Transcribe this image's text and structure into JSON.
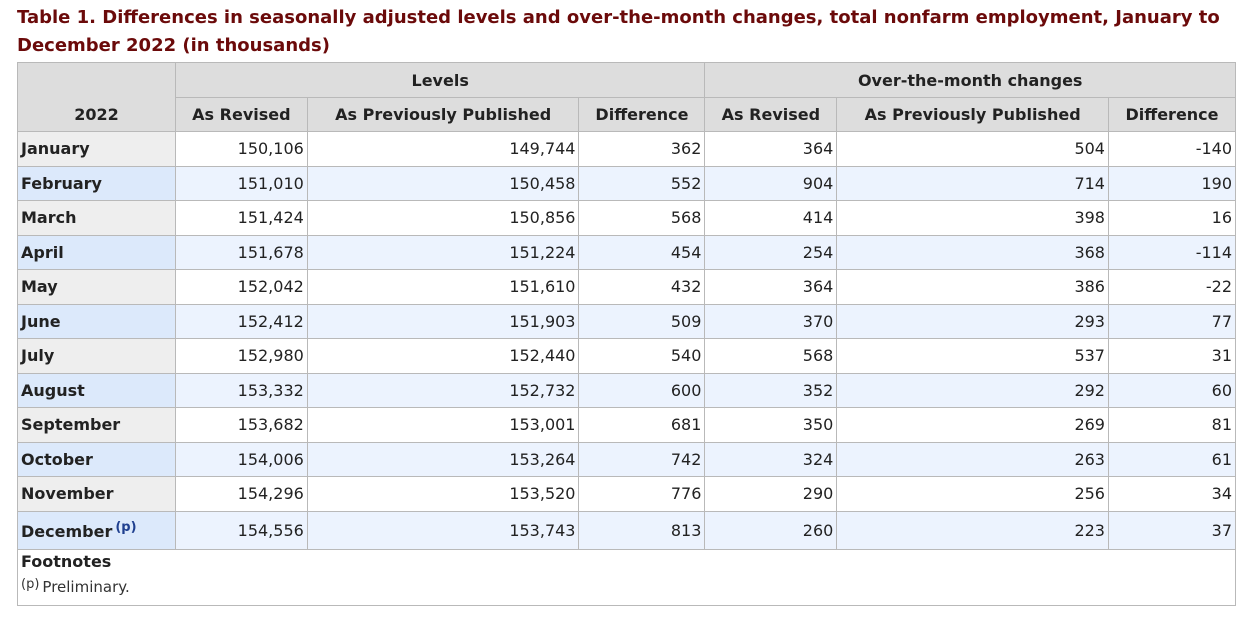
{
  "caption": "Table 1. Differences in seasonally adjusted levels and over-the-month changes, total nonfarm employment, January to December 2022 (in thousands)",
  "header": {
    "year_label": "2022",
    "group_levels": "Levels",
    "group_changes": "Over-the-month changes",
    "col_as_revised": "As Revised",
    "col_prev_published": "As Previously Published",
    "col_difference": "Difference"
  },
  "rows": [
    {
      "month": "January",
      "lev_rev": "150,106",
      "lev_prev": "149,744",
      "lev_diff": "362",
      "chg_rev": "364",
      "chg_prev": "504",
      "chg_diff": "-140"
    },
    {
      "month": "February",
      "lev_rev": "151,010",
      "lev_prev": "150,458",
      "lev_diff": "552",
      "chg_rev": "904",
      "chg_prev": "714",
      "chg_diff": "190"
    },
    {
      "month": "March",
      "lev_rev": "151,424",
      "lev_prev": "150,856",
      "lev_diff": "568",
      "chg_rev": "414",
      "chg_prev": "398",
      "chg_diff": "16"
    },
    {
      "month": "April",
      "lev_rev": "151,678",
      "lev_prev": "151,224",
      "lev_diff": "454",
      "chg_rev": "254",
      "chg_prev": "368",
      "chg_diff": "-114"
    },
    {
      "month": "May",
      "lev_rev": "152,042",
      "lev_prev": "151,610",
      "lev_diff": "432",
      "chg_rev": "364",
      "chg_prev": "386",
      "chg_diff": "-22"
    },
    {
      "month": "June",
      "lev_rev": "152,412",
      "lev_prev": "151,903",
      "lev_diff": "509",
      "chg_rev": "370",
      "chg_prev": "293",
      "chg_diff": "77"
    },
    {
      "month": "July",
      "lev_rev": "152,980",
      "lev_prev": "152,440",
      "lev_diff": "540",
      "chg_rev": "568",
      "chg_prev": "537",
      "chg_diff": "31"
    },
    {
      "month": "August",
      "lev_rev": "153,332",
      "lev_prev": "152,732",
      "lev_diff": "600",
      "chg_rev": "352",
      "chg_prev": "292",
      "chg_diff": "60"
    },
    {
      "month": "September",
      "lev_rev": "153,682",
      "lev_prev": "153,001",
      "lev_diff": "681",
      "chg_rev": "350",
      "chg_prev": "269",
      "chg_diff": "81"
    },
    {
      "month": "October",
      "lev_rev": "154,006",
      "lev_prev": "153,264",
      "lev_diff": "742",
      "chg_rev": "324",
      "chg_prev": "263",
      "chg_diff": "61"
    },
    {
      "month": "November",
      "lev_rev": "154,296",
      "lev_prev": "153,520",
      "lev_diff": "776",
      "chg_rev": "290",
      "chg_prev": "256",
      "chg_diff": "34"
    },
    {
      "month": "December",
      "footnote_ref": "(p)",
      "lev_rev": "154,556",
      "lev_prev": "153,743",
      "lev_diff": "813",
      "chg_rev": "260",
      "chg_prev": "223",
      "chg_diff": "37"
    }
  ],
  "footnotes": {
    "title": "Footnotes",
    "items": [
      {
        "mark": "(p)",
        "text": "Preliminary."
      }
    ]
  }
}
